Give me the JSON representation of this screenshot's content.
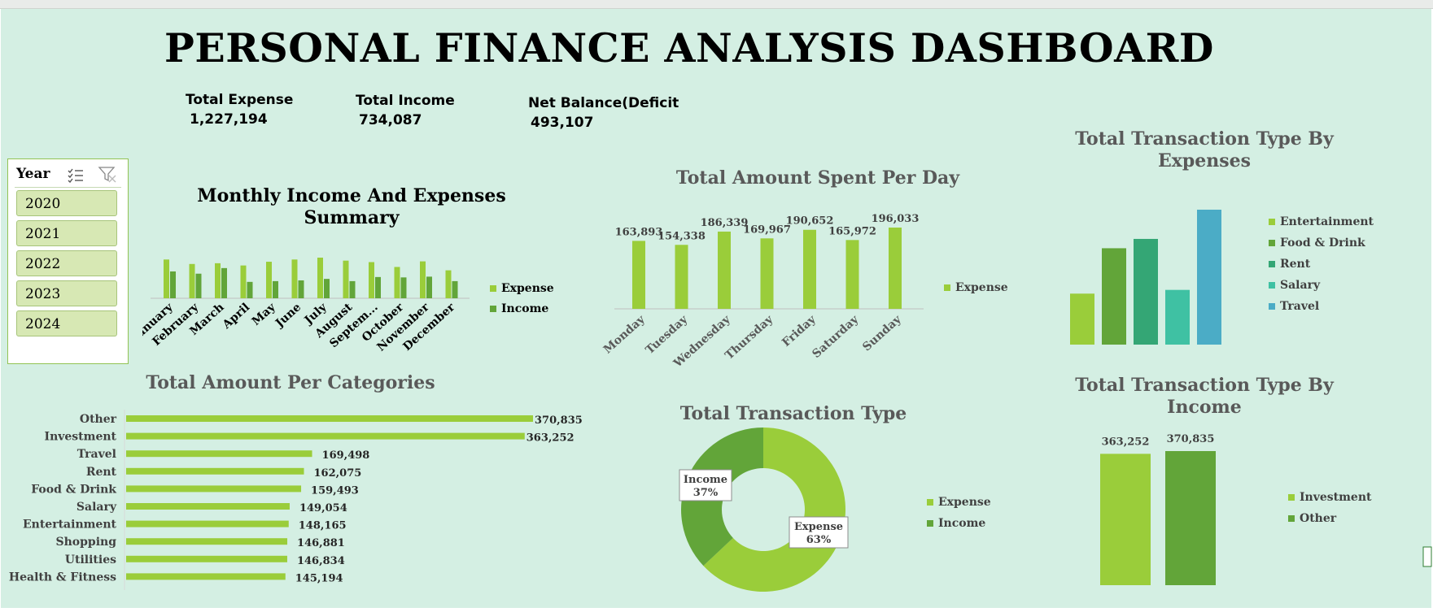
{
  "title": "PERSONAL FINANCE ANALYSIS DASHBOARD",
  "kpis": [
    {
      "label": "Total Expense",
      "value": "1,227,194"
    },
    {
      "label": "Total Income",
      "value": "734,087"
    },
    {
      "label": "Net Balance(Deficit",
      "value": "493,107"
    }
  ],
  "slicer": {
    "title": "Year",
    "items": [
      "2020",
      "2021",
      "2022",
      "2023",
      "2024"
    ]
  },
  "colors": {
    "background": "#d4efe3",
    "expense": "#9acd3a",
    "income": "#62a539",
    "rent": "#34a675",
    "salary": "#3fc1a3",
    "travel": "#4bacc6"
  },
  "chart_data": [
    {
      "id": "monthly",
      "type": "bar",
      "title": "Monthly Income And Expenses Summary",
      "categories": [
        "January",
        "February",
        "March",
        "April",
        "May",
        "June",
        "July",
        "August",
        "Septem...",
        "October",
        "November",
        "December"
      ],
      "series": [
        {
          "name": "Expense",
          "values": [
            104000,
            92000,
            94000,
            88000,
            98000,
            104000,
            109000,
            101000,
            97000,
            84000,
            99000,
            75000
          ]
        },
        {
          "name": "Income",
          "values": [
            72000,
            66000,
            81000,
            44000,
            46000,
            48000,
            52000,
            46000,
            57000,
            56000,
            58000,
            46000
          ]
        }
      ],
      "legend": "right"
    },
    {
      "id": "per_day",
      "type": "bar",
      "title": "Total Amount Spent Per Day",
      "categories": [
        "Monday",
        "Tuesday",
        "Wednesday",
        "Thursday",
        "Friday",
        "Saturday",
        "Sunday"
      ],
      "series": [
        {
          "name": "Expense",
          "values": [
            163893,
            154338,
            186339,
            169967,
            190652,
            165972,
            196033
          ]
        }
      ],
      "data_labels": [
        "163,893",
        "154,338",
        "186,339",
        "169,967",
        "190,652",
        "165,972",
        "196,033"
      ],
      "legend": "right"
    },
    {
      "id": "by_expenses",
      "type": "bar",
      "title": "Total Transaction Type By Expenses",
      "categories": [
        "Entertainment",
        "Food & Drink",
        "Rent",
        "Salary",
        "Travel"
      ],
      "values": [
        82000,
        155000,
        170000,
        88000,
        217000
      ],
      "legend": "right"
    },
    {
      "id": "per_category",
      "type": "bar",
      "orientation": "horizontal",
      "title": "Total Amount Per Categories",
      "categories": [
        "Other",
        "Investment",
        "Travel",
        "Rent",
        "Food & Drink",
        "Salary",
        "Entertainment",
        "Shopping",
        "Utilities",
        "Health & Fitness"
      ],
      "values": [
        370835,
        363252,
        169498,
        162075,
        159493,
        149054,
        148165,
        146881,
        146834,
        145194
      ],
      "data_labels": [
        "370,835",
        "363,252",
        "169,498",
        "162,075",
        "159,493",
        "149,054",
        "148,165",
        "146,881",
        "146,834",
        "145,194"
      ]
    },
    {
      "id": "transaction_type",
      "type": "pie",
      "donut": true,
      "title": "Total Transaction Type",
      "labels": [
        "Expense",
        "Income"
      ],
      "values": [
        63,
        37
      ],
      "data_labels": [
        {
          "name": "Expense",
          "pct": "63%"
        },
        {
          "name": "Income",
          "pct": "37%"
        }
      ],
      "legend": "right"
    },
    {
      "id": "by_income",
      "type": "bar",
      "title": "Total Transaction Type By Income",
      "categories": [
        "Investment",
        "Other"
      ],
      "values": [
        363252,
        370835
      ],
      "data_labels": [
        "363,252",
        "370,835"
      ],
      "legend": "right"
    }
  ]
}
